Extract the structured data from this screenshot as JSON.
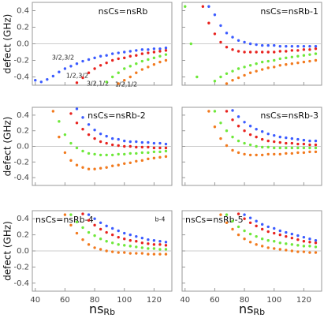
{
  "chart_data": [
    {
      "type": "scatter",
      "title": "nsCs=nsRb",
      "ylabel": "defect (GHz)",
      "x": [
        40,
        44,
        48,
        52,
        56,
        60,
        64,
        68,
        72,
        76,
        80,
        84,
        88,
        92,
        96,
        100,
        104,
        108,
        112,
        116,
        120,
        124,
        128
      ],
      "series": [
        {
          "color": "#3b5bff",
          "values": [
            -0.44,
            -0.46,
            -0.43,
            -0.39,
            -0.34,
            -0.3,
            -0.27,
            -0.24,
            -0.21,
            -0.19,
            -0.17,
            -0.15,
            -0.14,
            -0.12,
            -0.11,
            -0.1,
            -0.09,
            -0.08,
            -0.07,
            -0.07,
            -0.06,
            -0.06,
            -0.05
          ]
        },
        {
          "color": "#e8221e",
          "values": [
            null,
            null,
            null,
            null,
            null,
            null,
            null,
            -0.47,
            -0.41,
            -0.35,
            -0.3,
            -0.26,
            -0.23,
            -0.2,
            -0.18,
            -0.17,
            -0.15,
            -0.14,
            -0.12,
            -0.11,
            -0.1,
            -0.09,
            -0.08
          ]
        },
        {
          "color": "#6ee83a",
          "values": [
            null,
            null,
            null,
            null,
            null,
            null,
            null,
            null,
            null,
            null,
            null,
            null,
            -0.46,
            -0.4,
            -0.35,
            -0.3,
            -0.27,
            -0.24,
            -0.21,
            -0.19,
            -0.17,
            -0.15,
            -0.13
          ]
        },
        {
          "color": "#f27a1e",
          "values": [
            null,
            null,
            null,
            null,
            null,
            null,
            null,
            null,
            null,
            null,
            null,
            null,
            null,
            null,
            -0.48,
            -0.44,
            -0.4,
            -0.35,
            -0.31,
            -0.28,
            -0.25,
            -0.22,
            -0.2
          ]
        }
      ],
      "annotations": [
        "3/2,3/2",
        "1/2,3/2",
        "3/2,1/2",
        "1/2,1/2"
      ],
      "xlim": [
        38,
        132
      ],
      "ylim": [
        -0.5,
        0.5
      ],
      "xticks": [
        40,
        60,
        80,
        100,
        120
      ],
      "yticks": [
        0.4,
        0.2,
        {
          "value": 0,
          "label": "0.0"
        },
        -0.2,
        -0.4
      ],
      "ytick_labels": true,
      "xtick_labels": false,
      "grid": "zero"
    },
    {
      "type": "scatter",
      "title": "nsCs=nsRb-1",
      "x": [
        40,
        44,
        48,
        52,
        56,
        60,
        64,
        68,
        72,
        76,
        80,
        84,
        88,
        92,
        96,
        100,
        104,
        108,
        112,
        116,
        120,
        124,
        128
      ],
      "series": [
        {
          "color": "#3b5bff",
          "values": [
            null,
            null,
            null,
            null,
            0.45,
            0.35,
            0.22,
            0.13,
            0.08,
            0.04,
            0.02,
            0,
            -0.01,
            -0.02,
            -0.02,
            -0.02,
            -0.03,
            -0.03,
            -0.03,
            -0.03,
            -0.03,
            -0.03,
            -0.03
          ]
        },
        {
          "color": "#e8221e",
          "values": [
            null,
            null,
            null,
            0.45,
            0.25,
            0.12,
            0.02,
            -0.04,
            -0.07,
            -0.09,
            -0.1,
            -0.1,
            -0.1,
            -0.1,
            -0.1,
            -0.1,
            -0.09,
            -0.09,
            -0.08,
            -0.08,
            -0.07,
            -0.07,
            -0.06
          ]
        },
        {
          "color": "#6ee83a",
          "values": [
            0.45,
            0,
            -0.4,
            null,
            null,
            -0.45,
            -0.4,
            -0.36,
            -0.33,
            -0.3,
            -0.28,
            -0.26,
            -0.24,
            -0.22,
            -0.21,
            -0.2,
            -0.18,
            -0.17,
            -0.16,
            -0.15,
            -0.14,
            -0.13,
            -0.12
          ]
        },
        {
          "color": "#f27a1e",
          "values": [
            null,
            null,
            null,
            null,
            null,
            null,
            null,
            -0.48,
            -0.44,
            -0.41,
            -0.38,
            -0.35,
            -0.33,
            -0.31,
            -0.29,
            -0.28,
            -0.26,
            -0.25,
            -0.24,
            -0.23,
            -0.22,
            -0.21,
            -0.2
          ]
        }
      ],
      "xlim": [
        38,
        132
      ],
      "ylim": [
        -0.5,
        0.5
      ],
      "xticks": [
        40,
        60,
        80,
        100,
        120
      ],
      "yticks": [
        0.4,
        0.2,
        {
          "value": 0,
          "label": "0.0"
        },
        -0.2,
        -0.4
      ],
      "ytick_labels": false,
      "xtick_labels": false,
      "grid": "zero"
    },
    {
      "type": "scatter",
      "title": "nsCs=nsRb-2",
      "ylabel": "defect (GHz)",
      "x": [
        40,
        44,
        48,
        52,
        56,
        60,
        64,
        68,
        72,
        76,
        80,
        84,
        88,
        92,
        96,
        100,
        104,
        108,
        112,
        116,
        120,
        124,
        128
      ],
      "series": [
        {
          "color": "#3b5bff",
          "values": [
            null,
            null,
            null,
            null,
            null,
            null,
            null,
            0.48,
            0.37,
            0.28,
            0.21,
            0.16,
            0.13,
            0.1,
            0.09,
            0.07,
            0.06,
            0.06,
            0.05,
            0.05,
            0.04,
            0.04,
            0.03
          ]
        },
        {
          "color": "#e8221e",
          "values": [
            null,
            null,
            null,
            null,
            null,
            null,
            0.42,
            0.3,
            0.22,
            0.15,
            0.1,
            0.06,
            0.04,
            0.02,
            0.01,
            0,
            0,
            -0.01,
            -0.01,
            -0.01,
            -0.02,
            -0.02,
            -0.02
          ]
        },
        {
          "color": "#6ee83a",
          "values": [
            null,
            null,
            null,
            null,
            0.32,
            0.15,
            0.04,
            -0.02,
            -0.06,
            -0.09,
            -0.1,
            -0.11,
            -0.11,
            -0.11,
            -0.1,
            -0.1,
            -0.09,
            -0.09,
            -0.08,
            -0.08,
            -0.07,
            -0.07,
            -0.06
          ]
        },
        {
          "color": "#f27a1e",
          "values": [
            null,
            null,
            null,
            0.45,
            0.12,
            -0.08,
            -0.18,
            -0.24,
            -0.27,
            -0.29,
            -0.29,
            -0.28,
            -0.27,
            -0.25,
            -0.24,
            -0.22,
            -0.21,
            -0.19,
            -0.18,
            -0.16,
            -0.15,
            -0.14,
            -0.13
          ]
        }
      ],
      "xlim": [
        38,
        132
      ],
      "ylim": [
        -0.5,
        0.5
      ],
      "xticks": [
        40,
        60,
        80,
        100,
        120
      ],
      "yticks": [
        0.4,
        0.2,
        {
          "value": 0,
          "label": "0.0"
        },
        -0.2,
        -0.4
      ],
      "ytick_labels": true,
      "xtick_labels": false,
      "grid": "zero"
    },
    {
      "type": "scatter",
      "title": "nsCs=nsRb-3",
      "x": [
        40,
        44,
        48,
        52,
        56,
        60,
        64,
        68,
        72,
        76,
        80,
        84,
        88,
        92,
        96,
        100,
        104,
        108,
        112,
        116,
        120,
        124,
        128
      ],
      "series": [
        {
          "color": "#3b5bff",
          "values": [
            null,
            null,
            null,
            null,
            null,
            null,
            null,
            null,
            0.46,
            0.38,
            0.31,
            0.26,
            0.22,
            0.19,
            0.16,
            0.14,
            0.12,
            0.11,
            0.1,
            0.09,
            0.08,
            0.07,
            0.07
          ]
        },
        {
          "color": "#e8221e",
          "values": [
            null,
            null,
            null,
            null,
            null,
            null,
            null,
            0.45,
            0.34,
            0.26,
            0.2,
            0.15,
            0.12,
            0.09,
            0.07,
            0.06,
            0.05,
            0.04,
            0.04,
            0.03,
            0.03,
            0.02,
            0.02
          ]
        },
        {
          "color": "#6ee83a",
          "values": [
            null,
            null,
            null,
            null,
            null,
            0.45,
            0.3,
            0.2,
            0.12,
            0.07,
            0.04,
            0.02,
            0,
            -0.01,
            -0.01,
            -0.02,
            -0.02,
            -0.02,
            -0.02,
            -0.02,
            -0.02,
            -0.02,
            -0.02
          ]
        },
        {
          "color": "#f27a1e",
          "values": [
            null,
            null,
            null,
            null,
            0.45,
            0.25,
            0.1,
            0.01,
            -0.05,
            -0.08,
            -0.1,
            -0.11,
            -0.11,
            -0.11,
            -0.1,
            -0.1,
            -0.1,
            -0.09,
            -0.09,
            -0.08,
            -0.08,
            -0.07,
            -0.07
          ]
        }
      ],
      "xlim": [
        38,
        132
      ],
      "ylim": [
        -0.5,
        0.5
      ],
      "xticks": [
        40,
        60,
        80,
        100,
        120
      ],
      "yticks": [
        0.4,
        0.2,
        {
          "value": 0,
          "label": "0.0"
        },
        -0.2,
        -0.4
      ],
      "ytick_labels": false,
      "xtick_labels": false,
      "grid": "zero"
    },
    {
      "type": "scatter",
      "title": "nsCs=nsRb-4",
      "ylabel": "defect (GHz)",
      "xlabel": {
        "main": "ns",
        "sub": "Rb"
      },
      "x": [
        40,
        44,
        48,
        52,
        56,
        60,
        64,
        68,
        72,
        76,
        80,
        84,
        88,
        92,
        96,
        100,
        104,
        108,
        112,
        116,
        120,
        124,
        128
      ],
      "series": [
        {
          "color": "#3b5bff",
          "values": [
            null,
            null,
            null,
            null,
            null,
            null,
            null,
            null,
            null,
            0.45,
            0.4,
            0.35,
            0.31,
            0.28,
            0.25,
            0.22,
            0.2,
            0.18,
            0.16,
            0.14,
            0.13,
            0.12,
            0.11
          ]
        },
        {
          "color": "#e8221e",
          "values": [
            null,
            null,
            null,
            null,
            null,
            null,
            null,
            null,
            0.46,
            0.38,
            0.32,
            0.27,
            0.23,
            0.2,
            0.17,
            0.15,
            0.13,
            0.12,
            0.1,
            0.09,
            0.08,
            0.08,
            0.07
          ]
        },
        {
          "color": "#6ee83a",
          "values": [
            null,
            null,
            null,
            null,
            null,
            null,
            0.45,
            0.36,
            0.29,
            0.23,
            0.19,
            0.15,
            0.12,
            0.1,
            0.08,
            0.07,
            0.06,
            0.05,
            0.04,
            0.03,
            0.03,
            0.02,
            0.02
          ]
        },
        {
          "color": "#f27a1e",
          "values": [
            null,
            null,
            null,
            null,
            null,
            0.45,
            0.32,
            0.22,
            0.14,
            0.08,
            0.04,
            0.02,
            0,
            -0.01,
            -0.02,
            -0.02,
            -0.03,
            -0.03,
            -0.03,
            -0.04,
            -0.04,
            -0.04,
            -0.04
          ]
        }
      ],
      "annotations": [
        "b-4"
      ],
      "xlim": [
        38,
        132
      ],
      "ylim": [
        -0.5,
        0.5
      ],
      "xticks": [
        40,
        60,
        80,
        100,
        120
      ],
      "yticks": [
        0.4,
        0.2,
        {
          "value": 0,
          "label": "0.0"
        },
        -0.2,
        -0.4
      ],
      "ytick_labels": true,
      "xtick_labels": true,
      "grid": "zero"
    },
    {
      "type": "scatter",
      "title": "nsCs=nsRb-5",
      "xlabel": {
        "main": "ns",
        "sub": "Rb"
      },
      "x": [
        40,
        44,
        48,
        52,
        56,
        60,
        64,
        68,
        72,
        76,
        80,
        84,
        88,
        92,
        96,
        100,
        104,
        108,
        112,
        116,
        120,
        124,
        128
      ],
      "series": [
        {
          "color": "#3b5bff",
          "values": [
            null,
            null,
            null,
            null,
            null,
            null,
            null,
            null,
            null,
            null,
            0.45,
            0.41,
            0.37,
            0.33,
            0.3,
            0.28,
            0.25,
            0.23,
            0.21,
            0.19,
            0.17,
            0.15,
            0.13
          ]
        },
        {
          "color": "#e8221e",
          "values": [
            null,
            null,
            null,
            null,
            null,
            null,
            null,
            null,
            null,
            0.46,
            0.4,
            0.35,
            0.31,
            0.27,
            0.24,
            0.22,
            0.2,
            0.18,
            0.16,
            0.14,
            0.12,
            0.11,
            0.1
          ]
        },
        {
          "color": "#6ee83a",
          "values": [
            null,
            null,
            null,
            null,
            null,
            null,
            null,
            0.45,
            0.37,
            0.3,
            0.25,
            0.21,
            0.18,
            0.15,
            0.13,
            0.12,
            0.1,
            0.09,
            0.08,
            0.07,
            0.06,
            0.06,
            0.05
          ]
        },
        {
          "color": "#f27a1e",
          "values": [
            null,
            null,
            null,
            null,
            null,
            null,
            0.45,
            0.35,
            0.27,
            0.2,
            0.15,
            0.11,
            0.08,
            0.06,
            0.04,
            0.03,
            0.02,
            0.01,
            0,
            -0.01,
            -0.01,
            -0.02,
            -0.02
          ]
        }
      ],
      "xlim": [
        38,
        132
      ],
      "ylim": [
        -0.5,
        0.5
      ],
      "xticks": [
        40,
        60,
        80,
        100,
        120
      ],
      "yticks": [
        0.4,
        0.2,
        {
          "value": 0,
          "label": "0.0"
        },
        -0.2,
        -0.4
      ],
      "ytick_labels": false,
      "xtick_labels": true,
      "grid": "zero"
    }
  ]
}
